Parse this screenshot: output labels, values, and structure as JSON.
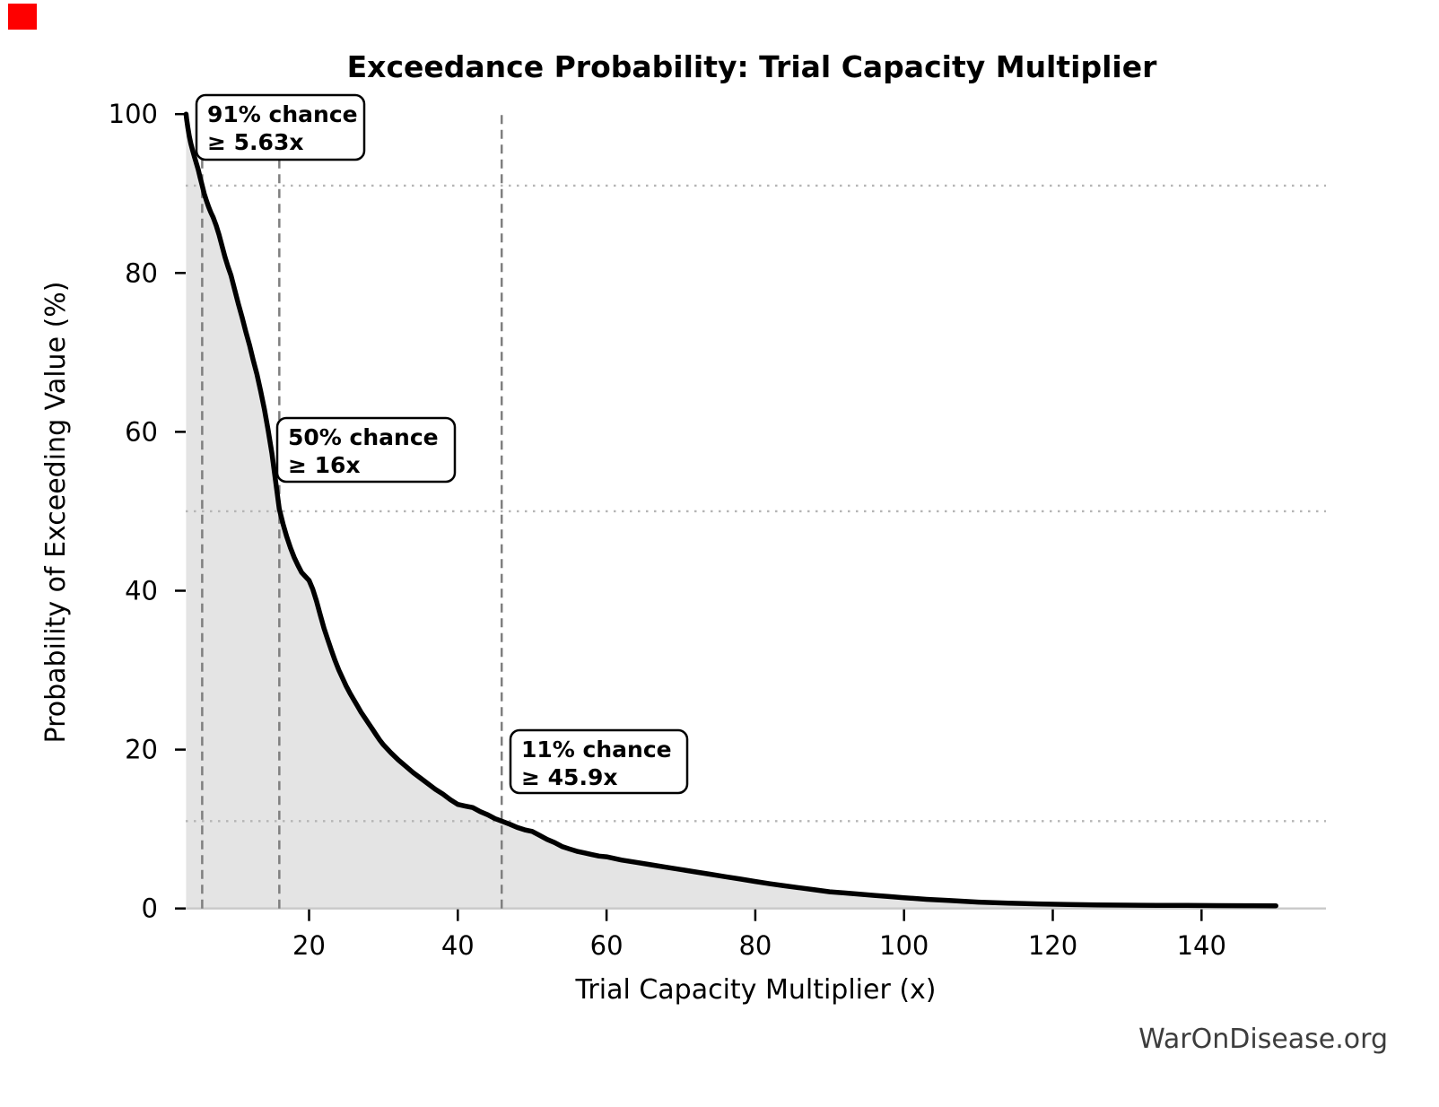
{
  "marker": {
    "name": "record-indicator",
    "color": "#fe0000"
  },
  "chart_data": {
    "type": "line",
    "title": "Exceedance Probability: Trial Capacity Multiplier",
    "xlabel": "Trial Capacity Multiplier (x)",
    "ylabel": "Probability of Exceeding Value (%)",
    "watermark": "WarOnDisease.org",
    "x_ticks": [
      20,
      40,
      60,
      80,
      100,
      120,
      140
    ],
    "y_ticks": [
      0,
      20,
      40,
      60,
      80,
      100
    ],
    "xlim": [
      3.41,
      156.6
    ],
    "ylim": [
      0,
      100
    ],
    "grid": "off",
    "legend": "none",
    "annotations": [
      {
        "line1": "91% chance",
        "line2": "≥ 5.63x",
        "x": 5.63,
        "prob": 91
      },
      {
        "line1": "50% chance",
        "line2": "≥ 16x",
        "x": 16,
        "prob": 50
      },
      {
        "line1": "11% chance",
        "line2": "≥ 45.9x",
        "x": 45.9,
        "prob": 11
      }
    ],
    "reference_lines": {
      "vertical_x": [
        5.63,
        16,
        45.9
      ],
      "horizontal_prob": [
        91,
        50,
        11
      ]
    },
    "colors": {
      "curve": "#000000",
      "fill": "#e4e4e4",
      "dashed": "#7f7f7f",
      "dotted": "#b5b5b5",
      "spine": "#c9c9c9",
      "tick": "#000000",
      "text": "#000000",
      "watermark": "#3d3d3d"
    },
    "series": [
      {
        "name": "exceedance",
        "points": [
          [
            3.46,
            100
          ],
          [
            3.55,
            99.3
          ],
          [
            3.7,
            98.3
          ],
          [
            3.9,
            97.2
          ],
          [
            4.1,
            96.3
          ],
          [
            4.35,
            95.4
          ],
          [
            4.6,
            94.6
          ],
          [
            4.85,
            93.8
          ],
          [
            5.1,
            93
          ],
          [
            5.35,
            92
          ],
          [
            5.63,
            91
          ],
          [
            5.9,
            90
          ],
          [
            6.2,
            89.1
          ],
          [
            6.5,
            88.3
          ],
          [
            6.8,
            87.6
          ],
          [
            7.1,
            87
          ],
          [
            7.5,
            86
          ],
          [
            7.9,
            84.8
          ],
          [
            8.3,
            83.4
          ],
          [
            8.7,
            82
          ],
          [
            9.1,
            80.8
          ],
          [
            9.5,
            79.7
          ],
          [
            10,
            77.9
          ],
          [
            10.5,
            76.1
          ],
          [
            11,
            74.4
          ],
          [
            11.5,
            72.6
          ],
          [
            12,
            70.9
          ],
          [
            12.5,
            69
          ],
          [
            13,
            67.2
          ],
          [
            13.5,
            65.1
          ],
          [
            14,
            62.8
          ],
          [
            14.5,
            60.2
          ],
          [
            15,
            57.3
          ],
          [
            15.5,
            53.8
          ],
          [
            16,
            50.3
          ],
          [
            16.5,
            48.4
          ],
          [
            17,
            46.8
          ],
          [
            17.5,
            45.4
          ],
          [
            18,
            44.2
          ],
          [
            18.5,
            43.2
          ],
          [
            19,
            42.3
          ],
          [
            19.5,
            41.8
          ],
          [
            20,
            41.3
          ],
          [
            20.5,
            40.2
          ],
          [
            21,
            38.7
          ],
          [
            21.5,
            37
          ],
          [
            22,
            35.3
          ],
          [
            22.5,
            33.9
          ],
          [
            23,
            32.5
          ],
          [
            23.5,
            31.2
          ],
          [
            24,
            30
          ],
          [
            24.5,
            29
          ],
          [
            25,
            28
          ],
          [
            25.5,
            27.1
          ],
          [
            26,
            26.3
          ],
          [
            26.5,
            25.5
          ],
          [
            27,
            24.7
          ],
          [
            27.5,
            24
          ],
          [
            28,
            23.3
          ],
          [
            28.5,
            22.6
          ],
          [
            29,
            21.9
          ],
          [
            29.5,
            21.2
          ],
          [
            30,
            20.6
          ],
          [
            31,
            19.6
          ],
          [
            32,
            18.7
          ],
          [
            33,
            17.9
          ],
          [
            34,
            17.1
          ],
          [
            35,
            16.4
          ],
          [
            36,
            15.7
          ],
          [
            37,
            15
          ],
          [
            38,
            14.4
          ],
          [
            39,
            13.7
          ],
          [
            40,
            13.1
          ],
          [
            41,
            12.9
          ],
          [
            42,
            12.7
          ],
          [
            43,
            12.2
          ],
          [
            44,
            11.8
          ],
          [
            45,
            11.3
          ],
          [
            45.9,
            11
          ],
          [
            47,
            10.6
          ],
          [
            48,
            10.2
          ],
          [
            49,
            9.9
          ],
          [
            50,
            9.7
          ],
          [
            51,
            9.2
          ],
          [
            52,
            8.7
          ],
          [
            53,
            8.3
          ],
          [
            54,
            7.8
          ],
          [
            55,
            7.5
          ],
          [
            56,
            7.2
          ],
          [
            57,
            7
          ],
          [
            58,
            6.8
          ],
          [
            59,
            6.6
          ],
          [
            60,
            6.5
          ],
          [
            62,
            6.1
          ],
          [
            64,
            5.8
          ],
          [
            66,
            5.5
          ],
          [
            68,
            5.2
          ],
          [
            70,
            4.9
          ],
          [
            72,
            4.6
          ],
          [
            74,
            4.3
          ],
          [
            76,
            4
          ],
          [
            78,
            3.7
          ],
          [
            80,
            3.4
          ],
          [
            82,
            3.1
          ],
          [
            84,
            2.85
          ],
          [
            86,
            2.6
          ],
          [
            88,
            2.35
          ],
          [
            90,
            2.1
          ],
          [
            92,
            1.95
          ],
          [
            94,
            1.8
          ],
          [
            96,
            1.65
          ],
          [
            98,
            1.5
          ],
          [
            100,
            1.35
          ],
          [
            103,
            1.15
          ],
          [
            106,
            1
          ],
          [
            110,
            0.8
          ],
          [
            114,
            0.68
          ],
          [
            118,
            0.58
          ],
          [
            122,
            0.5
          ],
          [
            126,
            0.45
          ],
          [
            130,
            0.42
          ],
          [
            134,
            0.4
          ],
          [
            138,
            0.38
          ],
          [
            142,
            0.36
          ],
          [
            146,
            0.35
          ],
          [
            150,
            0.34
          ]
        ]
      }
    ]
  }
}
